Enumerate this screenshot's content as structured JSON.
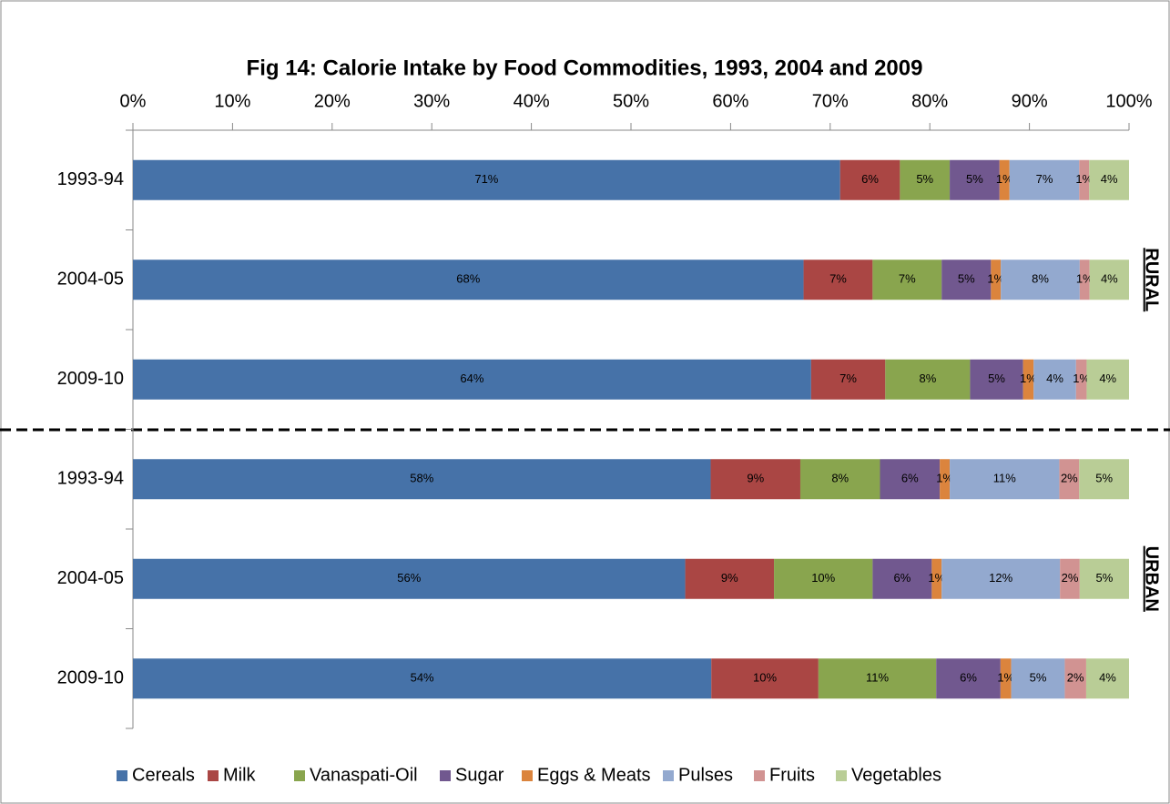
{
  "chart_data": {
    "type": "bar",
    "orientation": "horizontal",
    "stacking": "percent",
    "title": "Fig 14: Calorie Intake by Food Commodities, 1993, 2004 and 2009",
    "categories": [
      "1993-94",
      "2004-05",
      "2009-10",
      "1993-94",
      "2004-05",
      "2009-10"
    ],
    "annotations": [
      "RURAL",
      "URBAN"
    ],
    "xlim": [
      0,
      100
    ],
    "xticks": [
      {
        "value": 0,
        "label": "0%"
      },
      {
        "value": 10,
        "label": "10%"
      },
      {
        "value": 20,
        "label": "20%"
      },
      {
        "value": 30,
        "label": "30%"
      },
      {
        "value": 40,
        "label": "40%"
      },
      {
        "value": 50,
        "label": "50%"
      },
      {
        "value": 60,
        "label": "60%"
      },
      {
        "value": 70,
        "label": "70%"
      },
      {
        "value": 80,
        "label": "80%"
      },
      {
        "value": 90,
        "label": "90%"
      },
      {
        "value": 100,
        "label": "100%"
      }
    ],
    "legend": "bottom",
    "series": [
      {
        "name": "Cereals",
        "color": "#4672a8",
        "values": [
          71,
          68,
          64,
          58,
          56,
          54
        ],
        "value_labels": [
          "71%",
          "68%",
          "64%",
          "58%",
          "56%",
          "54%"
        ]
      },
      {
        "name": "Milk",
        "color": "#aa4644",
        "values": [
          6,
          7,
          7,
          9,
          9,
          10
        ],
        "value_labels": [
          "6%",
          "7%",
          "7%",
          "9%",
          "9%",
          "10%"
        ]
      },
      {
        "name": "Vanaspati-Oil",
        "color": "#89a54e",
        "values": [
          5,
          7,
          8,
          8,
          10,
          11
        ],
        "value_labels": [
          "5%",
          "7%",
          "8%",
          "8%",
          "10%",
          "11%"
        ]
      },
      {
        "name": "Sugar",
        "color": "#71588f",
        "values": [
          5,
          5,
          5,
          6,
          6,
          6
        ],
        "value_labels": [
          "5%",
          "5%",
          "5%",
          "6%",
          "6%",
          "6%"
        ]
      },
      {
        "name": "Eggs & Meats",
        "color": "#db843d",
        "values": [
          1,
          1,
          1,
          1,
          1,
          1
        ],
        "value_labels": [
          "1%",
          "1%",
          "1%",
          "1%",
          "1%",
          "1%"
        ]
      },
      {
        "name": "Pulses",
        "color": "#93a9cf",
        "values": [
          7,
          8,
          4,
          11,
          12,
          5
        ],
        "value_labels": [
          "7%",
          "8%",
          "4%",
          "11%",
          "12%",
          "5%"
        ]
      },
      {
        "name": "Fruits",
        "color": "#d19392",
        "values": [
          1,
          1,
          1,
          2,
          2,
          2
        ],
        "value_labels": [
          "1%",
          "1%",
          "1%",
          "2%",
          "2%",
          "2%"
        ]
      },
      {
        "name": "Vegetables",
        "color": "#b9cd96",
        "values": [
          4,
          4,
          4,
          5,
          5,
          4
        ],
        "value_labels": [
          "4%",
          "4%",
          "4%",
          "5%",
          "5%",
          "4%"
        ]
      }
    ]
  }
}
